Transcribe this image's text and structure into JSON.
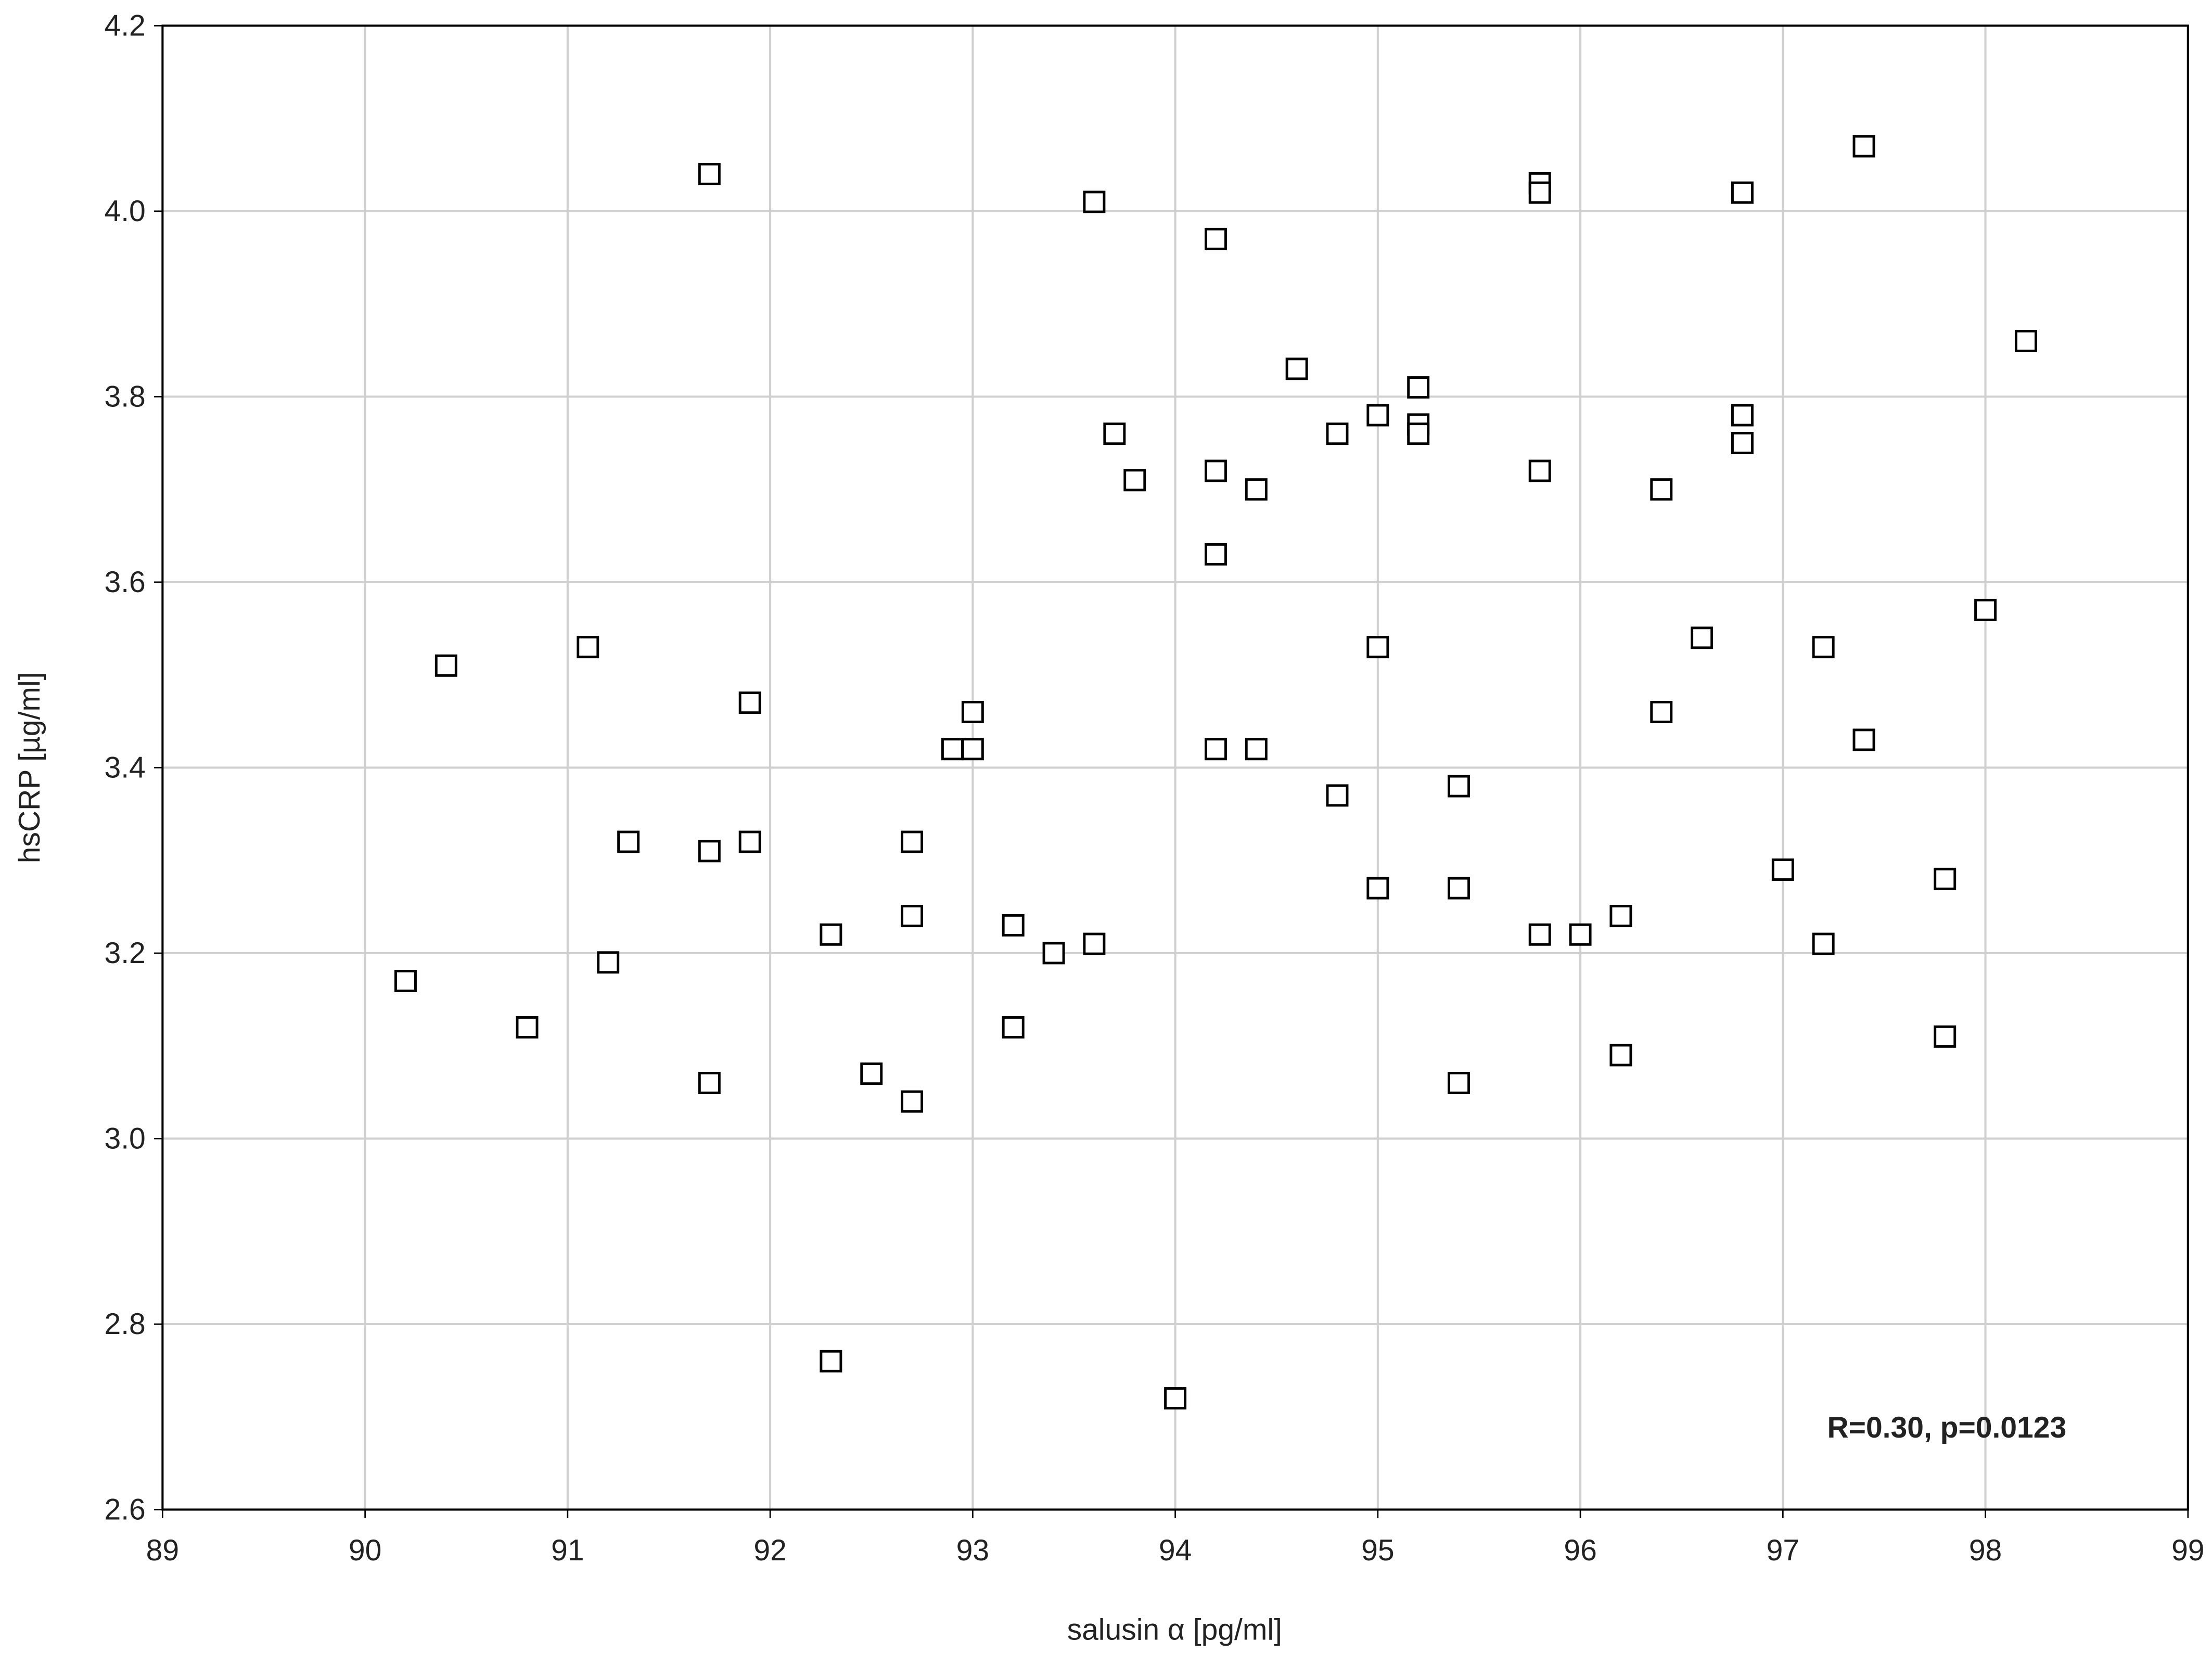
{
  "chart_data": {
    "type": "scatter",
    "x_label": "salusin α [pg/ml]",
    "y_label": "hsCRP [µg/ml]",
    "annotation": "R=0.30, p=0.0123",
    "xlim": [
      89,
      99
    ],
    "ylim": [
      2.6,
      4.2
    ],
    "xticks": [
      89,
      90,
      91,
      92,
      93,
      94,
      95,
      96,
      97,
      98,
      99
    ],
    "yticks": [
      2.6,
      2.8,
      {
        "value": 3,
        "label": "3.0"
      },
      3.2,
      3.4,
      3.6,
      3.8,
      {
        "value": 4,
        "label": "4.0"
      },
      4.2
    ],
    "grid": true,
    "color": "#000000",
    "x": [
      91.7,
      93.6,
      94.2,
      95.8,
      95.8,
      96.8,
      97.4,
      98.2,
      94.6,
      95.2,
      95.0,
      95.2,
      95.2,
      94.8,
      93.7,
      93.8,
      94.2,
      94.4,
      95.8,
      96.8,
      96.8,
      96.4,
      94.2,
      98.0,
      96.6,
      95.0,
      97.2,
      90.4,
      91.1,
      91.9,
      93.0,
      92.9,
      93.0,
      94.2,
      94.4,
      96.4,
      97.4,
      94.8,
      95.4,
      91.3,
      91.7,
      91.9,
      92.7,
      95.0,
      95.4,
      97.0,
      97.8,
      92.7,
      93.2,
      92.3,
      93.6,
      93.4,
      91.2,
      90.2,
      90.8,
      93.2,
      95.8,
      96.0,
      96.2,
      97.2,
      97.8,
      96.2,
      91.7,
      92.5,
      92.7,
      95.4,
      92.3,
      94.0
    ],
    "values": [
      4.04,
      4.01,
      3.97,
      4.03,
      4.02,
      4.02,
      4.07,
      3.86,
      3.83,
      3.81,
      3.78,
      3.77,
      3.76,
      3.76,
      3.76,
      3.71,
      3.72,
      3.7,
      3.72,
      3.78,
      3.75,
      3.7,
      3.63,
      3.57,
      3.54,
      3.53,
      3.53,
      3.51,
      3.53,
      3.47,
      3.46,
      3.42,
      3.42,
      3.42,
      3.42,
      3.46,
      3.43,
      3.37,
      3.38,
      3.32,
      3.31,
      3.32,
      3.32,
      3.27,
      3.27,
      3.29,
      3.28,
      3.24,
      3.23,
      3.22,
      3.21,
      3.2,
      3.19,
      3.17,
      3.12,
      3.12,
      3.22,
      3.22,
      3.24,
      3.21,
      3.11,
      3.09,
      3.06,
      3.07,
      3.04,
      3.06,
      2.76,
      2.72
    ]
  }
}
